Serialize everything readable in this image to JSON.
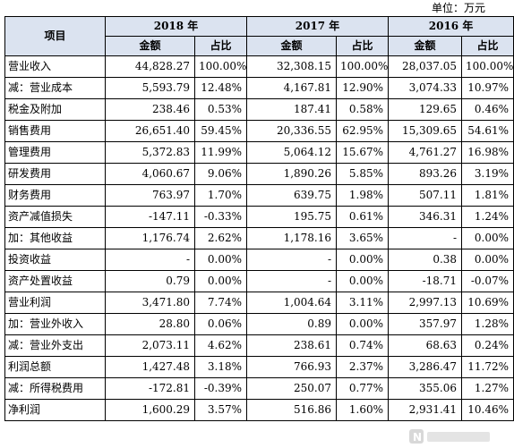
{
  "unit_label": "单位：万元",
  "header": {
    "item": "项目",
    "years": [
      "2018 年",
      "2017 年",
      "2016 年"
    ],
    "amount": "金额",
    "ratio": "占比"
  },
  "rows": [
    {
      "label": "营业收入",
      "cells": [
        "44,828.27",
        "100.00%",
        "32,308.15",
        "100.00%",
        "28,037.05",
        "100.00%"
      ]
    },
    {
      "label": "减：营业成本",
      "cells": [
        "5,593.79",
        "12.48%",
        "4,167.81",
        "12.90%",
        "3,074.33",
        "10.97%"
      ]
    },
    {
      "label": "税金及附加",
      "cells": [
        "238.46",
        "0.53%",
        "187.41",
        "0.58%",
        "129.65",
        "0.46%"
      ]
    },
    {
      "label": "销售费用",
      "cells": [
        "26,651.40",
        "59.45%",
        "20,336.55",
        "62.95%",
        "15,309.65",
        "54.61%"
      ]
    },
    {
      "label": "管理费用",
      "cells": [
        "5,372.83",
        "11.99%",
        "5,064.12",
        "15.67%",
        "4,761.27",
        "16.98%"
      ]
    },
    {
      "label": "研发费用",
      "cells": [
        "4,060.67",
        "9.06%",
        "1,890.26",
        "5.85%",
        "893.26",
        "3.19%"
      ]
    },
    {
      "label": "财务费用",
      "cells": [
        "763.97",
        "1.70%",
        "639.75",
        "1.98%",
        "507.11",
        "1.81%"
      ]
    },
    {
      "label": "资产减值损失",
      "cells": [
        "-147.11",
        "-0.33%",
        "195.75",
        "0.61%",
        "346.31",
        "1.24%"
      ]
    },
    {
      "label": "加：其他收益",
      "cells": [
        "1,176.74",
        "2.62%",
        "1,178.16",
        "3.65%",
        "-",
        "0.00%"
      ]
    },
    {
      "label": "投资收益",
      "cells": [
        "-",
        "0.00%",
        "-",
        "0.00%",
        "0.38",
        "0.00%"
      ]
    },
    {
      "label": "资产处置收益",
      "cells": [
        "0.79",
        "0.00%",
        "-",
        "0.00%",
        "-18.71",
        "-0.07%"
      ]
    },
    {
      "label": "营业利润",
      "cells": [
        "3,471.80",
        "7.74%",
        "1,004.64",
        "3.11%",
        "2,997.13",
        "10.69%"
      ]
    },
    {
      "label": "加：营业外收入",
      "cells": [
        "28.80",
        "0.06%",
        "0.89",
        "0.00%",
        "357.97",
        "1.28%"
      ]
    },
    {
      "label": "减：营业外支出",
      "cells": [
        "2,073.11",
        "4.62%",
        "238.61",
        "0.74%",
        "68.63",
        "0.24%"
      ]
    },
    {
      "label": "利润总额",
      "cells": [
        "1,427.48",
        "3.18%",
        "766.93",
        "2.37%",
        "3,286.47",
        "11.72%"
      ]
    },
    {
      "label": "减：所得税费用",
      "cells": [
        "-172.81",
        "-0.39%",
        "250.07",
        "0.77%",
        "355.06",
        "1.27%"
      ]
    },
    {
      "label": "净利润",
      "cells": [
        "1,600.29",
        "3.57%",
        "516.86",
        "1.60%",
        "2,931.41",
        "10.46%"
      ]
    }
  ]
}
